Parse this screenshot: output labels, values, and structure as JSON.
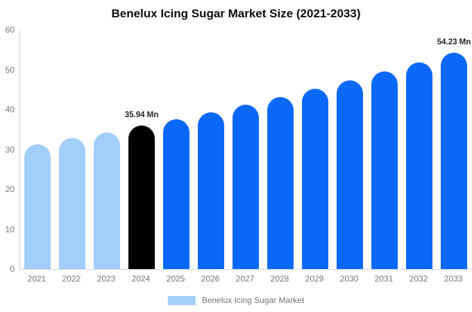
{
  "title": "Benelux Icing Sugar Market Size (2021-2033)",
  "legend": {
    "label": "Benelux Icing Sugar Market",
    "swatch_color": "#a2cefc"
  },
  "colors": {
    "historical": "#a2cefc",
    "base_year": "#000000",
    "forecast": "#0a68fb",
    "axis_line": "#cfcfcf",
    "axis_text": "#757575",
    "data_label_text": "#242424",
    "background": "#ffffff"
  },
  "chart_data": {
    "type": "bar",
    "title": "Benelux Icing Sugar Market Size (2021-2033)",
    "unit": "Mn",
    "categories": [
      "2021",
      "2022",
      "2023",
      "2024",
      "2025",
      "2026",
      "2027",
      "2028",
      "2029",
      "2030",
      "2031",
      "2032",
      "2033"
    ],
    "values": [
      31.3,
      32.8,
      34.3,
      35.94,
      37.6,
      39.4,
      41.2,
      43.1,
      45.2,
      47.3,
      49.5,
      51.8,
      54.23
    ],
    "bar_roles": [
      "historical",
      "historical",
      "historical",
      "base_year",
      "forecast",
      "forecast",
      "forecast",
      "forecast",
      "forecast",
      "forecast",
      "forecast",
      "forecast",
      "forecast"
    ],
    "data_labels": [
      null,
      null,
      null,
      "35.94 Mn",
      null,
      null,
      null,
      null,
      null,
      null,
      null,
      null,
      "54.23 Mn"
    ],
    "xlabel": "",
    "ylabel": "",
    "ylim": [
      0,
      60
    ],
    "yticks": [
      0,
      10,
      20,
      30,
      40,
      50,
      60
    ],
    "grid": false,
    "rounded_top": true,
    "legend_position": "bottom"
  }
}
